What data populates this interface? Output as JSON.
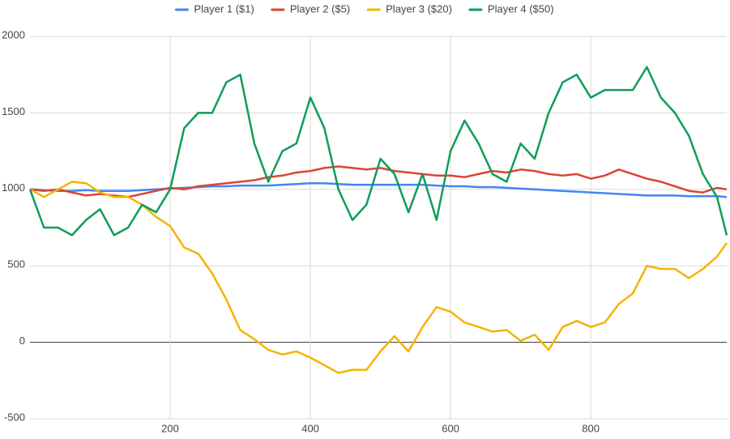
{
  "chart_data": {
    "type": "line",
    "x": [
      0,
      20,
      40,
      60,
      80,
      100,
      120,
      140,
      160,
      180,
      200,
      220,
      240,
      260,
      280,
      300,
      320,
      340,
      360,
      380,
      400,
      420,
      440,
      460,
      480,
      500,
      520,
      540,
      560,
      580,
      600,
      620,
      640,
      660,
      680,
      700,
      720,
      740,
      760,
      780,
      800,
      820,
      840,
      860,
      880,
      900,
      920,
      940,
      960,
      980,
      994
    ],
    "series": [
      {
        "name": "Player 1 ($1)",
        "color": "#4285f4",
        "values": [
          1000,
          995,
          990,
          990,
          995,
          990,
          990,
          990,
          995,
          1000,
          1005,
          1010,
          1015,
          1020,
          1020,
          1025,
          1025,
          1025,
          1030,
          1035,
          1040,
          1040,
          1035,
          1030,
          1030,
          1030,
          1030,
          1030,
          1030,
          1025,
          1020,
          1020,
          1015,
          1015,
          1010,
          1005,
          1000,
          995,
          990,
          985,
          980,
          975,
          970,
          965,
          960,
          960,
          960,
          955,
          955,
          955,
          950
        ]
      },
      {
        "name": "Player 2 ($5)",
        "color": "#db4437",
        "values": [
          1000,
          990,
          1000,
          980,
          960,
          970,
          960,
          950,
          970,
          990,
          1010,
          1000,
          1020,
          1030,
          1040,
          1050,
          1060,
          1080,
          1090,
          1110,
          1120,
          1140,
          1150,
          1140,
          1130,
          1140,
          1120,
          1110,
          1100,
          1090,
          1090,
          1080,
          1100,
          1120,
          1110,
          1130,
          1120,
          1100,
          1090,
          1100,
          1070,
          1090,
          1130,
          1100,
          1070,
          1050,
          1020,
          990,
          980,
          1010,
          1000
        ]
      },
      {
        "name": "Player 3 ($20)",
        "color": "#f4b400",
        "values": [
          1000,
          950,
          1000,
          1050,
          1040,
          980,
          950,
          950,
          900,
          820,
          760,
          620,
          580,
          450,
          280,
          80,
          20,
          -50,
          -80,
          -60,
          -100,
          -150,
          -200,
          -180,
          -180,
          -60,
          40,
          -60,
          100,
          230,
          200,
          130,
          100,
          70,
          80,
          10,
          50,
          -50,
          100,
          140,
          100,
          130,
          250,
          320,
          500,
          480,
          480,
          420,
          480,
          560,
          650
        ]
      },
      {
        "name": "Player 4 ($50)",
        "color": "#0f9d58",
        "values": [
          1000,
          750,
          750,
          700,
          800,
          870,
          700,
          750,
          900,
          850,
          1000,
          1400,
          1500,
          1500,
          1700,
          1750,
          1300,
          1050,
          1250,
          1300,
          1600,
          1400,
          1000,
          800,
          900,
          1200,
          1100,
          850,
          1100,
          800,
          1250,
          1450,
          1300,
          1100,
          1050,
          1300,
          1200,
          1500,
          1700,
          1750,
          1600,
          1650,
          1650,
          1650,
          1800,
          1600,
          1500,
          1350,
          1100,
          950,
          700
        ]
      }
    ],
    "xlim": [
      0,
      994
    ],
    "xticks": [
      200,
      400,
      600,
      800
    ],
    "ylim": [
      -500,
      2000
    ],
    "yticks": [
      -500,
      0,
      500,
      1000,
      1500,
      2000
    ],
    "grid": true,
    "legend": "top"
  }
}
